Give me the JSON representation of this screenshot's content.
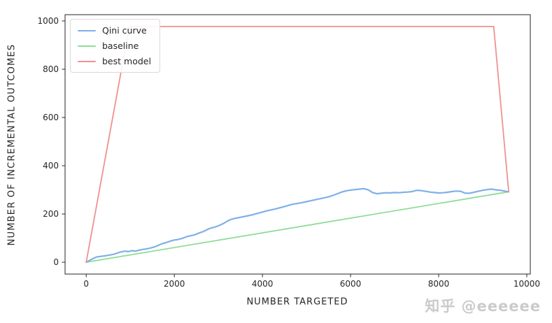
{
  "figure": {
    "watermark": "知乎 @eeeeee"
  },
  "chart_data": {
    "type": "line",
    "title": "",
    "xlabel": "NUMBER TARGETED",
    "ylabel": "NUMBER OF INCREMENTAL OUTCOMES",
    "xlim": [
      -480,
      10080
    ],
    "ylim": [
      -49,
      1026
    ],
    "xticks": [
      0,
      2000,
      4000,
      6000,
      8000,
      10000
    ],
    "yticks": [
      0,
      200,
      400,
      600,
      800,
      1000
    ],
    "grid": false,
    "legend_position": "upper-left",
    "axis_color": "#262626",
    "text_color": "#262626",
    "series": [
      {
        "id": "qini-curve",
        "name": "Qini curve",
        "color": "#7FB0E8",
        "width": 2.2,
        "points": [
          [
            0,
            0
          ],
          [
            80,
            8
          ],
          [
            160,
            16
          ],
          [
            240,
            22
          ],
          [
            320,
            24
          ],
          [
            400,
            26
          ],
          [
            480,
            28
          ],
          [
            560,
            31
          ],
          [
            640,
            34
          ],
          [
            720,
            39
          ],
          [
            800,
            43
          ],
          [
            880,
            46
          ],
          [
            960,
            44
          ],
          [
            1040,
            48
          ],
          [
            1120,
            46
          ],
          [
            1200,
            50
          ],
          [
            1280,
            53
          ],
          [
            1360,
            55
          ],
          [
            1440,
            58
          ],
          [
            1520,
            62
          ],
          [
            1600,
            67
          ],
          [
            1680,
            74
          ],
          [
            1760,
            79
          ],
          [
            1840,
            83
          ],
          [
            1920,
            88
          ],
          [
            2000,
            92
          ],
          [
            2080,
            94
          ],
          [
            2160,
            98
          ],
          [
            2240,
            103
          ],
          [
            2320,
            108
          ],
          [
            2400,
            111
          ],
          [
            2480,
            115
          ],
          [
            2560,
            121
          ],
          [
            2640,
            126
          ],
          [
            2720,
            133
          ],
          [
            2800,
            140
          ],
          [
            2880,
            144
          ],
          [
            2960,
            148
          ],
          [
            3040,
            154
          ],
          [
            3120,
            161
          ],
          [
            3200,
            170
          ],
          [
            3280,
            177
          ],
          [
            3360,
            181
          ],
          [
            3440,
            184
          ],
          [
            3520,
            187
          ],
          [
            3600,
            190
          ],
          [
            3680,
            193
          ],
          [
            3760,
            196
          ],
          [
            3840,
            200
          ],
          [
            3920,
            204
          ],
          [
            4000,
            208
          ],
          [
            4100,
            213
          ],
          [
            4200,
            217
          ],
          [
            4300,
            221
          ],
          [
            4400,
            226
          ],
          [
            4500,
            231
          ],
          [
            4600,
            236
          ],
          [
            4700,
            241
          ],
          [
            4800,
            244
          ],
          [
            4900,
            247
          ],
          [
            5000,
            251
          ],
          [
            5100,
            255
          ],
          [
            5200,
            259
          ],
          [
            5300,
            263
          ],
          [
            5400,
            267
          ],
          [
            5500,
            271
          ],
          [
            5600,
            277
          ],
          [
            5700,
            284
          ],
          [
            5800,
            291
          ],
          [
            5900,
            296
          ],
          [
            6000,
            299
          ],
          [
            6100,
            301
          ],
          [
            6200,
            303
          ],
          [
            6300,
            305
          ],
          [
            6400,
            300
          ],
          [
            6500,
            289
          ],
          [
            6600,
            284
          ],
          [
            6700,
            286
          ],
          [
            6800,
            288
          ],
          [
            6900,
            287
          ],
          [
            7000,
            289
          ],
          [
            7100,
            288
          ],
          [
            7200,
            290
          ],
          [
            7300,
            291
          ],
          [
            7400,
            293
          ],
          [
            7500,
            298
          ],
          [
            7600,
            297
          ],
          [
            7700,
            294
          ],
          [
            7800,
            291
          ],
          [
            7900,
            289
          ],
          [
            8000,
            287
          ],
          [
            8100,
            288
          ],
          [
            8200,
            290
          ],
          [
            8300,
            293
          ],
          [
            8400,
            295
          ],
          [
            8500,
            294
          ],
          [
            8600,
            286
          ],
          [
            8700,
            286
          ],
          [
            8800,
            290
          ],
          [
            8900,
            294
          ],
          [
            9000,
            298
          ],
          [
            9100,
            301
          ],
          [
            9200,
            303
          ],
          [
            9300,
            300
          ],
          [
            9400,
            298
          ],
          [
            9500,
            295
          ],
          [
            9590,
            292
          ]
        ]
      },
      {
        "id": "baseline",
        "name": "baseline",
        "color": "#8FDD97",
        "width": 1.8,
        "points": [
          [
            0,
            0
          ],
          [
            9590,
            292
          ]
        ]
      },
      {
        "id": "best-model",
        "name": "best model",
        "color": "#F09191",
        "width": 1.8,
        "points": [
          [
            0,
            0
          ],
          [
            980,
            977
          ],
          [
            9250,
            977
          ],
          [
            9590,
            292
          ]
        ]
      }
    ]
  }
}
